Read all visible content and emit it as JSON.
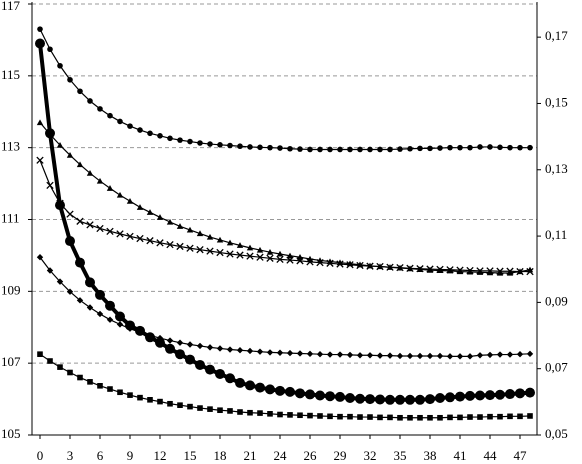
{
  "chart_data": {
    "type": "line",
    "categories": [
      "0",
      null,
      null,
      "3",
      null,
      null,
      "6",
      null,
      null,
      "9",
      null,
      null,
      "12",
      null,
      null,
      "15",
      null,
      null,
      "18",
      null,
      null,
      "21",
      null,
      null,
      "24",
      null,
      null,
      "26",
      null,
      null,
      "29",
      null,
      null,
      "32",
      null,
      null,
      "35",
      null,
      null,
      "38",
      null,
      null,
      "41",
      null,
      null,
      "44",
      null,
      null,
      "47",
      null
    ],
    "ylim": [
      105,
      117
    ],
    "yticks": [
      105,
      107,
      109,
      111,
      113,
      115,
      117
    ],
    "y2lim": [
      0.05,
      0.18
    ],
    "y2ticks": [
      {
        "value": 0.05,
        "label": "0,05"
      },
      {
        "value": 0.07,
        "label": "0,07"
      },
      {
        "value": 0.09,
        "label": "0,09"
      },
      {
        "value": 0.11,
        "label": "0,11"
      },
      {
        "value": 0.13,
        "label": "0,13"
      },
      {
        "value": 0.15,
        "label": "0,15"
      },
      {
        "value": 0.17,
        "label": "0,17"
      }
    ],
    "grid": true,
    "series": [
      {
        "color": "#000000",
        "marker": "circle",
        "line_width": 1.2,
        "values": [
          116.3,
          115.74,
          115.28,
          114.89,
          114.57,
          114.3,
          114.08,
          113.89,
          113.73,
          113.6,
          113.49,
          113.4,
          113.33,
          113.26,
          113.21,
          113.17,
          113.13,
          113.1,
          113.08,
          113.06,
          113.04,
          113.02,
          113.01,
          113.0,
          112.99,
          112.97,
          112.96,
          112.95,
          112.95,
          112.95,
          112.95,
          112.95,
          112.95,
          112.95,
          112.95,
          112.95,
          112.96,
          112.97,
          112.98,
          112.98,
          112.99,
          113.0,
          113.0,
          113.0,
          113.02,
          113.02,
          113.01,
          113.0,
          113.0,
          113.0
        ]
      },
      {
        "color": "#000000",
        "marker": "triangle",
        "line_width": 1.2,
        "values": [
          113.7,
          113.37,
          113.07,
          112.79,
          112.53,
          112.29,
          112.07,
          111.87,
          111.68,
          111.51,
          111.34,
          111.2,
          111.06,
          110.93,
          110.81,
          110.71,
          110.61,
          110.51,
          110.43,
          110.35,
          110.28,
          110.21,
          110.15,
          110.09,
          110.04,
          109.99,
          109.95,
          109.9,
          109.86,
          109.83,
          109.8,
          109.77,
          109.74,
          109.71,
          109.69,
          109.67,
          109.65,
          109.63,
          109.61,
          109.59,
          109.58,
          109.57,
          109.55,
          109.54,
          109.53,
          109.52,
          109.51,
          109.51,
          109.55,
          109.6
        ]
      },
      {
        "color": "#000000",
        "marker": "cross",
        "line_width": 1.2,
        "values": [
          112.65,
          111.95,
          111.45,
          111.15,
          110.95,
          110.85,
          110.75,
          110.67,
          110.6,
          110.53,
          110.47,
          110.41,
          110.35,
          110.3,
          110.25,
          110.2,
          110.16,
          110.12,
          110.08,
          110.04,
          110.01,
          109.98,
          109.95,
          109.92,
          109.89,
          109.87,
          109.85,
          109.82,
          109.8,
          109.78,
          109.76,
          109.74,
          109.72,
          109.7,
          109.69,
          109.67,
          109.66,
          109.64,
          109.63,
          109.62,
          109.61,
          109.6,
          109.59,
          109.58,
          109.57,
          109.57,
          109.56,
          109.56,
          109.55,
          109.55
        ]
      },
      {
        "color": "#000000",
        "marker": "diamond",
        "line_width": 1.2,
        "values": [
          109.95,
          109.58,
          109.27,
          108.99,
          108.75,
          108.55,
          108.37,
          108.21,
          108.08,
          107.96,
          107.86,
          107.77,
          107.7,
          107.63,
          107.57,
          107.52,
          107.48,
          107.44,
          107.41,
          107.38,
          107.36,
          107.34,
          107.32,
          107.3,
          107.29,
          107.28,
          107.27,
          107.26,
          107.25,
          107.24,
          107.24,
          107.23,
          107.22,
          107.22,
          107.21,
          107.21,
          107.2,
          107.2,
          107.2,
          107.2,
          107.2,
          107.19,
          107.19,
          107.19,
          107.22,
          107.23,
          107.24,
          107.24,
          107.25,
          107.26
        ]
      },
      {
        "color": "#000000",
        "marker": "square",
        "line_width": 1.2,
        "values": [
          107.25,
          107.06,
          106.89,
          106.74,
          106.6,
          106.48,
          106.37,
          106.28,
          106.19,
          106.11,
          106.04,
          105.98,
          105.93,
          105.87,
          105.83,
          105.79,
          105.75,
          105.72,
          105.69,
          105.67,
          105.64,
          105.62,
          105.61,
          105.59,
          105.57,
          105.56,
          105.55,
          105.54,
          105.53,
          105.52,
          105.51,
          105.51,
          105.5,
          105.5,
          105.49,
          105.49,
          105.48,
          105.48,
          105.48,
          105.48,
          105.48,
          105.49,
          105.49,
          105.5,
          105.5,
          105.51,
          105.51,
          105.52,
          105.52,
          105.53
        ]
      },
      {
        "color": "#000000",
        "marker": "big-circle",
        "line_width": 4,
        "values": [
          115.9,
          113.4,
          111.4,
          110.4,
          109.8,
          109.25,
          108.9,
          108.6,
          108.3,
          108.05,
          107.9,
          107.72,
          107.57,
          107.4,
          107.25,
          107.1,
          106.95,
          106.82,
          106.7,
          106.58,
          106.45,
          106.38,
          106.32,
          106.27,
          106.23,
          106.2,
          106.16,
          106.13,
          106.1,
          106.08,
          106.06,
          106.03,
          106.01,
          106.0,
          105.99,
          105.98,
          105.98,
          105.98,
          105.98,
          106.0,
          106.03,
          106.05,
          106.07,
          106.09,
          106.1,
          106.11,
          106.12,
          106.14,
          106.16,
          106.18
        ]
      }
    ]
  }
}
